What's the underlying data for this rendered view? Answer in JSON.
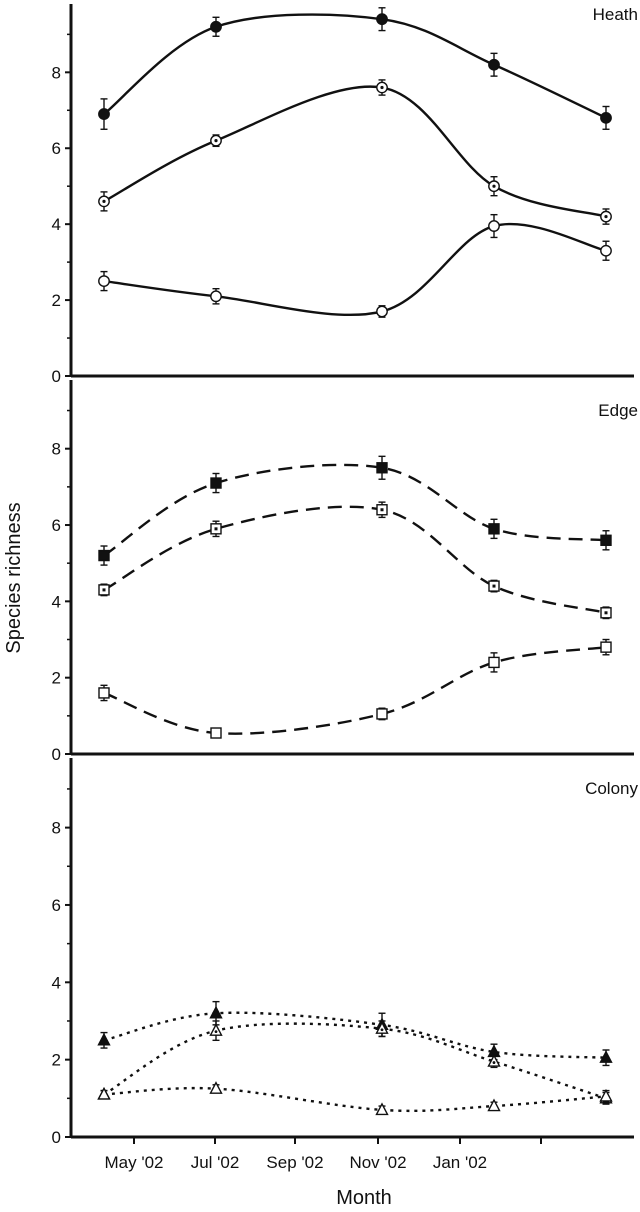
{
  "chart_data": {
    "type": "line",
    "xlabel": "Month",
    "ylabel": "Species richness",
    "x_tick_labels": [
      "May '02",
      "Jul '02",
      "Sep '02",
      "Nov '02",
      "Jan '02"
    ],
    "y_ticks": [
      "0",
      "2",
      "4",
      "6",
      "8"
    ],
    "ylim": [
      0,
      9.8
    ],
    "x_positions": [
      0.0,
      1.0,
      2.5,
      3.5,
      4.5
    ],
    "panels": [
      {
        "title": "Heath",
        "line_style": "solid",
        "series": [
          {
            "marker": "filled-circle",
            "values": [
              6.9,
              9.2,
              9.4,
              8.2,
              6.8
            ],
            "errors": [
              0.4,
              0.25,
              0.3,
              0.3,
              0.3
            ]
          },
          {
            "marker": "dotted-circle",
            "values": [
              4.6,
              6.2,
              7.6,
              5.0,
              4.2
            ],
            "errors": [
              0.25,
              0.15,
              0.2,
              0.25,
              0.2
            ]
          },
          {
            "marker": "open-circle",
            "values": [
              2.5,
              2.1,
              1.7,
              3.95,
              3.3
            ],
            "errors": [
              0.25,
              0.2,
              0.15,
              0.3,
              0.25
            ]
          }
        ]
      },
      {
        "title": "Edge",
        "line_style": "dashed",
        "series": [
          {
            "marker": "filled-square",
            "values": [
              5.2,
              7.1,
              7.5,
              5.9,
              5.6
            ],
            "errors": [
              0.25,
              0.25,
              0.3,
              0.25,
              0.25
            ]
          },
          {
            "marker": "dotted-square",
            "values": [
              4.3,
              5.9,
              6.4,
              4.4,
              3.7
            ],
            "errors": [
              0.15,
              0.2,
              0.2,
              0.15,
              0.15
            ]
          },
          {
            "marker": "open-square",
            "values": [
              1.6,
              0.55,
              1.05,
              2.4,
              2.8
            ],
            "errors": [
              0.2,
              0.1,
              0.15,
              0.25,
              0.2
            ]
          }
        ]
      },
      {
        "title": "Colony",
        "line_style": "dotted",
        "series": [
          {
            "marker": "filled-triangle",
            "values": [
              2.5,
              3.2,
              2.9,
              2.2,
              2.05
            ],
            "errors": [
              0.2,
              0.3,
              0.3,
              0.2,
              0.2
            ]
          },
          {
            "marker": "dotted-triangle",
            "values": [
              1.1,
              2.75,
              2.8,
              1.95,
              1.0
            ],
            "errors": [
              0.1,
              0.25,
              0.2,
              0.15,
              0.15
            ]
          },
          {
            "marker": "open-triangle",
            "values": [
              1.1,
              1.25,
              0.7,
              0.8,
              1.05
            ],
            "errors": [
              0.1,
              0.1,
              0.1,
              0.1,
              0.15
            ]
          }
        ]
      }
    ]
  }
}
